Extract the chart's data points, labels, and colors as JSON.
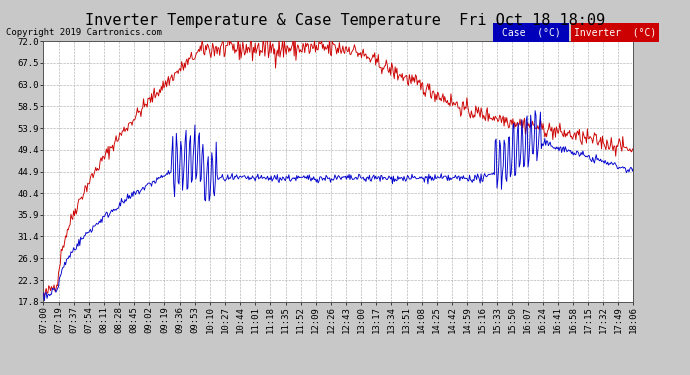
{
  "title": "Inverter Temperature & Case Temperature  Fri Oct 18 18:09",
  "copyright": "Copyright 2019 Cartronics.com",
  "background_color": "#c8c8c8",
  "plot_bg_color": "#ffffff",
  "grid_color": "#b0b0b0",
  "yticks": [
    17.8,
    22.3,
    26.9,
    31.4,
    35.9,
    40.4,
    44.9,
    49.4,
    53.9,
    58.5,
    63.0,
    67.5,
    72.0
  ],
  "ylim": [
    17.8,
    72.0
  ],
  "legend_case_label": "Case  (°C)",
  "legend_inv_label": "Inverter  (°C)",
  "inverter_color": "#cc0000",
  "case_color": "#0000cc",
  "legend_case_bg": "#0000bb",
  "legend_inv_bg": "#cc0000",
  "title_fontsize": 11,
  "axis_fontsize": 6.5,
  "copyright_fontsize": 6.5,
  "xtick_labels": [
    "07:00",
    "07:19",
    "07:37",
    "07:54",
    "08:11",
    "08:28",
    "08:45",
    "09:02",
    "09:19",
    "09:36",
    "09:53",
    "10:10",
    "10:27",
    "10:44",
    "11:01",
    "11:18",
    "11:35",
    "11:52",
    "12:09",
    "12:26",
    "12:43",
    "13:00",
    "13:17",
    "13:34",
    "13:51",
    "14:08",
    "14:25",
    "14:42",
    "14:59",
    "15:16",
    "15:33",
    "15:50",
    "16:07",
    "16:24",
    "16:41",
    "16:58",
    "17:15",
    "17:32",
    "17:49",
    "18:06"
  ]
}
